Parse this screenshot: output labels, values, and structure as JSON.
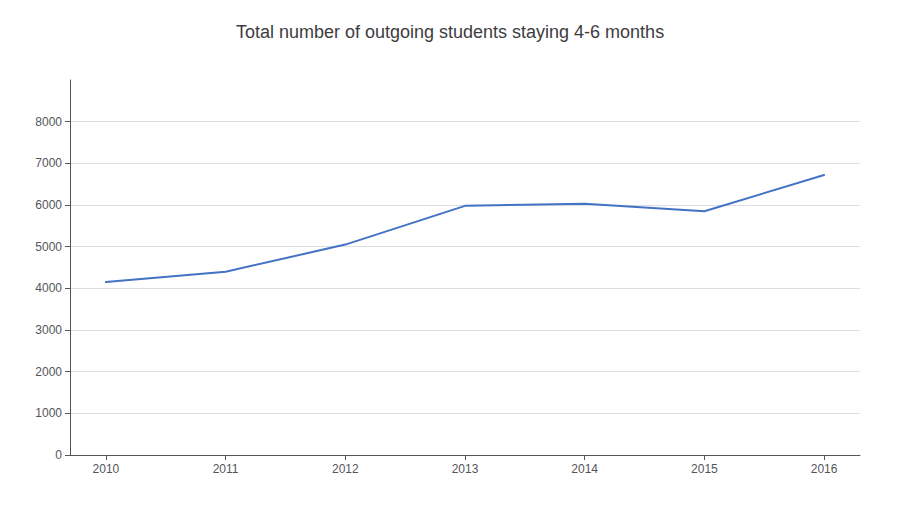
{
  "chart_data": {
    "type": "line",
    "title": "Total number of outgoing students staying 4-6 months",
    "x": [
      2010,
      2011,
      2012,
      2013,
      2014,
      2015,
      2016
    ],
    "values": [
      4150,
      4400,
      5050,
      5980,
      6030,
      5850,
      6720
    ],
    "color": "#4472C4",
    "xlim": [
      2009.7,
      2016.3
    ],
    "xticks": [
      2010,
      2011,
      2012,
      2013,
      2014,
      2015,
      2016
    ],
    "ylim": [
      0,
      9000
    ],
    "yticks": [
      0,
      1000,
      2000,
      3000,
      4000,
      5000,
      6000,
      7000,
      8000
    ],
    "grid": true
  }
}
